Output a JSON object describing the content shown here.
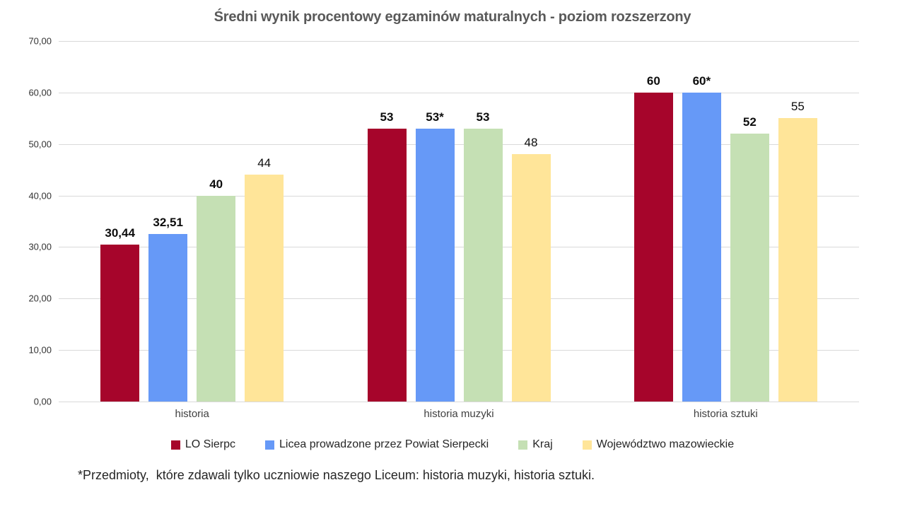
{
  "title": "Średni wynik procentowy egzaminów maturalnych - poziom rozszerzony",
  "footnote": "*Przedmioty,  które zdawali tylko uczniowie naszego Liceum: historia muzyki, historia sztuki.",
  "chart_data": {
    "type": "bar",
    "categories": [
      "historia",
      "historia muzyki",
      "historia sztuki"
    ],
    "series": [
      {
        "name": "LO Sierpc",
        "color": "#A6052B",
        "values": [
          30.44,
          53,
          60
        ],
        "labels": [
          "30,44",
          "53",
          "60"
        ],
        "label_bold": true
      },
      {
        "name": "Licea prowadzone przez Powiat Sierpecki",
        "color": "#6699F7",
        "values": [
          32.51,
          53,
          60
        ],
        "labels": [
          "32,51",
          "53*",
          "60*"
        ],
        "label_bold": true
      },
      {
        "name": "Kraj",
        "color": "#C5E0B4",
        "values": [
          40,
          53,
          52
        ],
        "labels": [
          "40",
          "53",
          "52"
        ],
        "label_bold": true
      },
      {
        "name": "Województwo mazowieckie",
        "color": "#FFE599",
        "values": [
          44,
          48,
          55
        ],
        "labels": [
          "44",
          "48",
          "55"
        ],
        "label_bold": false
      }
    ],
    "ylim": [
      0,
      70
    ],
    "ytick_step": 10,
    "ytick_labels": [
      "0,00",
      "10,00",
      "20,00",
      "30,00",
      "40,00",
      "50,00",
      "60,00",
      "70,00"
    ],
    "grid": true,
    "legend_position": "bottom",
    "title_color": "#595959",
    "grid_color": "#d9d9d9"
  }
}
